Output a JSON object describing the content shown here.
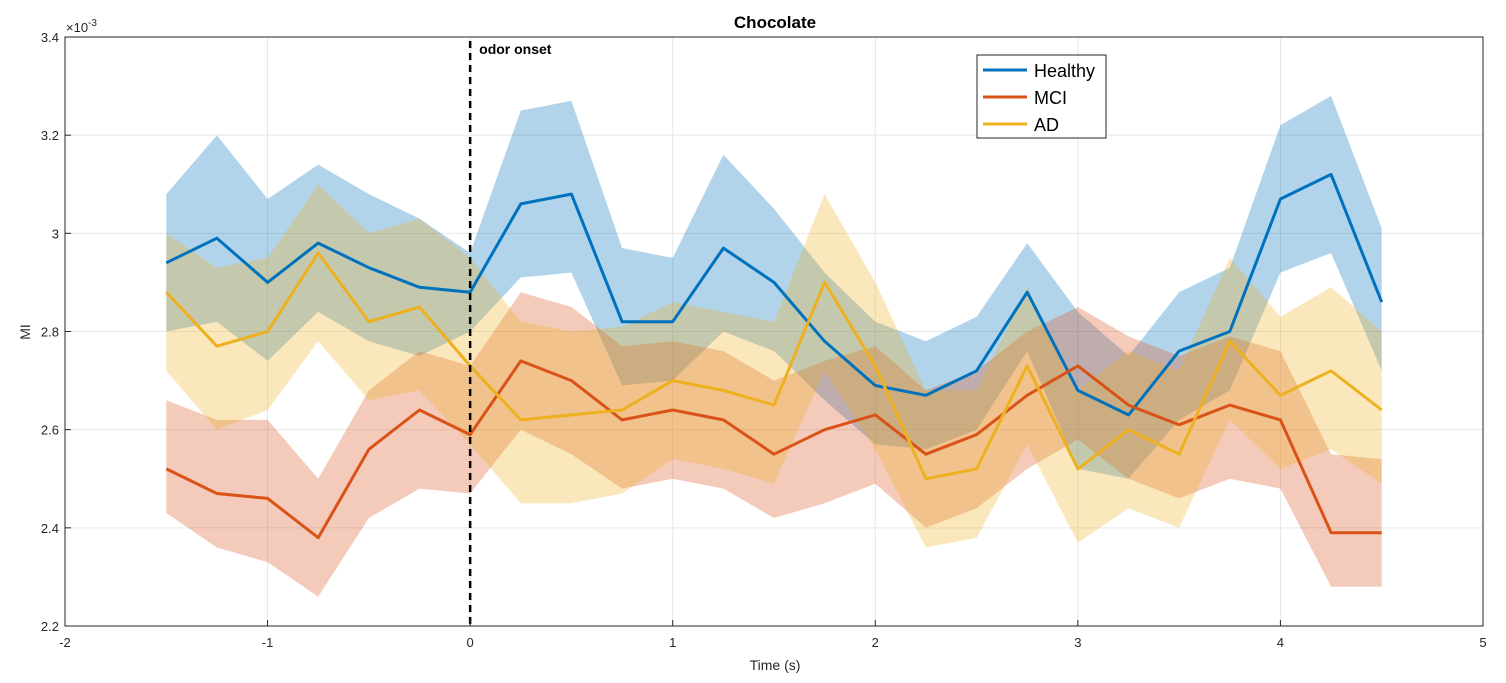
{
  "chart_data": {
    "type": "line",
    "title": "Chocolate",
    "xlabel": "Time (s)",
    "ylabel": "MI",
    "xlim": [
      -2,
      5
    ],
    "ylim": [
      2.2,
      3.4
    ],
    "xticks": [
      "-2",
      "-1",
      "0",
      "1",
      "2",
      "3",
      "4",
      "5"
    ],
    "yticks": [
      "2.2",
      "2.4",
      "2.6",
      "2.8",
      "3",
      "3.2",
      "3.4"
    ],
    "y_exponent_prefix": "×10",
    "y_exponent_power": "-3",
    "grid": true,
    "legend_position": "top-right",
    "annotation": {
      "text": "odor onset",
      "x": 0
    },
    "x": [
      -1.5,
      -1.25,
      -1.0,
      -0.75,
      -0.5,
      -0.25,
      0.0,
      0.25,
      0.5,
      0.75,
      1.0,
      1.25,
      1.5,
      1.75,
      2.0,
      2.25,
      2.5,
      2.75,
      3.0,
      3.25,
      3.5,
      3.75,
      4.0,
      4.25,
      4.5
    ],
    "series": [
      {
        "name": "Healthy",
        "color": "#0072BD",
        "values": [
          2.94,
          2.99,
          2.9,
          2.98,
          2.93,
          2.89,
          2.88,
          3.06,
          3.08,
          2.82,
          2.82,
          2.97,
          2.9,
          2.78,
          2.69,
          2.67,
          2.72,
          2.88,
          2.68,
          2.63,
          2.76,
          2.8,
          3.07,
          3.12,
          2.86
        ],
        "upper": [
          3.08,
          3.2,
          3.07,
          3.14,
          3.08,
          3.03,
          2.96,
          3.25,
          3.27,
          2.97,
          2.95,
          3.16,
          3.05,
          2.92,
          2.82,
          2.78,
          2.83,
          2.98,
          2.84,
          2.75,
          2.88,
          2.93,
          3.22,
          3.28,
          3.01
        ],
        "lower": [
          2.8,
          2.82,
          2.74,
          2.84,
          2.78,
          2.75,
          2.8,
          2.91,
          2.92,
          2.69,
          2.7,
          2.8,
          2.76,
          2.66,
          2.57,
          2.56,
          2.6,
          2.76,
          2.52,
          2.5,
          2.62,
          2.68,
          2.92,
          2.96,
          2.72
        ]
      },
      {
        "name": "MCI",
        "color": "#D95319",
        "values": [
          2.52,
          2.47,
          2.46,
          2.38,
          2.56,
          2.64,
          2.59,
          2.74,
          2.7,
          2.62,
          2.64,
          2.62,
          2.55,
          2.6,
          2.63,
          2.55,
          2.59,
          2.67,
          2.73,
          2.65,
          2.61,
          2.65,
          2.62,
          2.39,
          2.39
        ],
        "upper": [
          2.66,
          2.62,
          2.62,
          2.5,
          2.68,
          2.76,
          2.73,
          2.88,
          2.85,
          2.77,
          2.78,
          2.76,
          2.7,
          2.74,
          2.77,
          2.68,
          2.72,
          2.8,
          2.85,
          2.79,
          2.75,
          2.79,
          2.76,
          2.55,
          2.54
        ],
        "lower": [
          2.43,
          2.36,
          2.33,
          2.26,
          2.42,
          2.48,
          2.47,
          2.6,
          2.55,
          2.48,
          2.5,
          2.48,
          2.42,
          2.45,
          2.49,
          2.4,
          2.44,
          2.52,
          2.58,
          2.5,
          2.46,
          2.5,
          2.48,
          2.28,
          2.28
        ]
      },
      {
        "name": "AD",
        "color": "#EDB120",
        "values": [
          2.88,
          2.77,
          2.8,
          2.96,
          2.82,
          2.85,
          2.73,
          2.62,
          2.63,
          2.64,
          2.7,
          2.68,
          2.65,
          2.9,
          2.73,
          2.5,
          2.52,
          2.73,
          2.52,
          2.6,
          2.55,
          2.78,
          2.67,
          2.72,
          2.64
        ],
        "upper": [
          3.0,
          2.93,
          2.95,
          3.1,
          3.0,
          3.03,
          2.95,
          2.82,
          2.8,
          2.81,
          2.86,
          2.84,
          2.82,
          3.08,
          2.9,
          2.68,
          2.68,
          2.89,
          2.68,
          2.76,
          2.72,
          2.95,
          2.83,
          2.89,
          2.8
        ],
        "lower": [
          2.72,
          2.6,
          2.64,
          2.78,
          2.66,
          2.68,
          2.57,
          2.45,
          2.45,
          2.47,
          2.54,
          2.52,
          2.49,
          2.72,
          2.56,
          2.36,
          2.38,
          2.57,
          2.37,
          2.44,
          2.4,
          2.62,
          2.52,
          2.56,
          2.49
        ]
      }
    ]
  }
}
